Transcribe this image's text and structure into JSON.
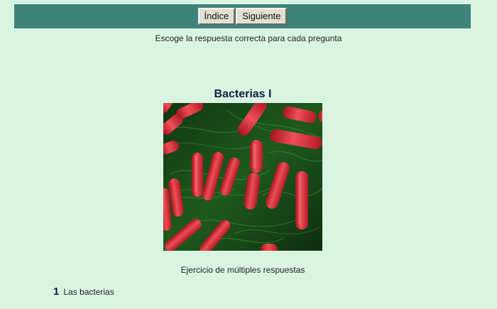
{
  "nav": {
    "index_label": "Índice",
    "next_label": "Siguiente"
  },
  "instruction": "Escoge la respuesta correcta para cada pregunta",
  "quiz": {
    "title": "Bacterias I",
    "image": {
      "icon": "bacteria-micrograph-image"
    },
    "exercise_type": "Ejercicio de múltiples respuestas",
    "questions": [
      {
        "number": "1",
        "text": "Las bacterias"
      }
    ]
  },
  "colors": {
    "background": "#d9f5e2",
    "nav_bar": "#3d827b",
    "button": "#e0e0d4",
    "title": "#111d3d",
    "bacteria": "#d8343e",
    "image_background": "#1c4a1c"
  }
}
